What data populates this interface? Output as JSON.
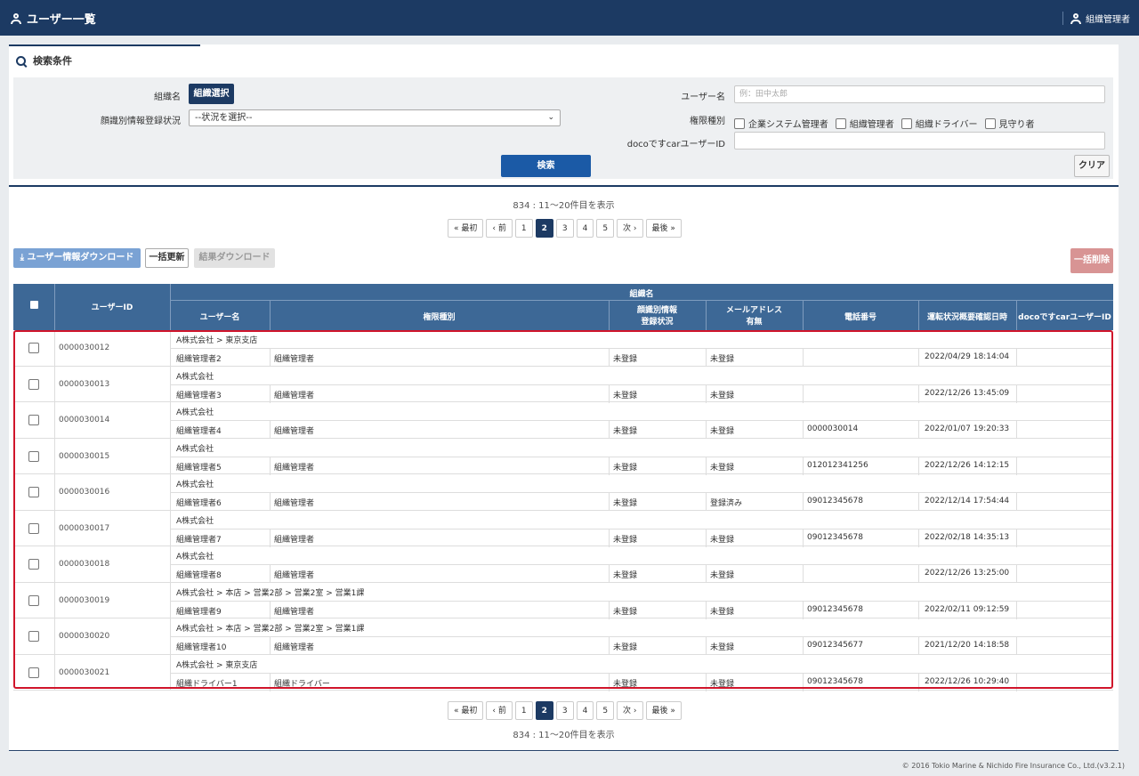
{
  "header": {
    "title": "ユーザー一覧",
    "user_role": "組織管理者"
  },
  "search": {
    "title": "検索条件",
    "org_label": "組織名",
    "org_button": "組織選択",
    "status_label": "顔識別情報登録状況",
    "status_select": "--状況を選択--",
    "username_label": "ユーザー名",
    "username_placeholder": "例：田中太郎",
    "role_label": "権限種別",
    "roles": [
      "企業システム管理者",
      "組織管理者",
      "組織ドライバー",
      "見守り者"
    ],
    "docoid_label": "docoですcarユーザーID",
    "search_button": "検索",
    "clear_button": "クリア"
  },
  "result_count": "834 : 11〜20件目を表示",
  "pager": {
    "first": "« 最初",
    "prev": "‹ 前",
    "pages": [
      "1",
      "2",
      "3",
      "4",
      "5"
    ],
    "current": "2",
    "next": "次 ›",
    "last": "最後 »"
  },
  "actions": {
    "download": "⤓ ユーザー情報ダウンロード",
    "bulk_update": "一括更新",
    "result_download": "結果ダウンロード",
    "bulk_delete": "一括削除"
  },
  "table": {
    "headers": {
      "user_id": "ユーザーID",
      "org": "組織名",
      "username": "ユーザー名",
      "role": "権限種別",
      "face_status_1": "顔識別情報",
      "face_status_2": "登録状況",
      "mail_1": "メールアドレス",
      "mail_2": "有無",
      "phone": "電話番号",
      "driving": "運転状況概要確認日時",
      "docoid": "docoですcarユーザーID"
    },
    "rows": [
      {
        "id": "0000030012",
        "org": "A株式会社 > 東京支店",
        "name": "組織管理者2",
        "role": "組織管理者",
        "face": "未登録",
        "mail": "未登録",
        "phone": "",
        "date": "2022/04/29 18:14:04",
        "doco": ""
      },
      {
        "id": "0000030013",
        "org": "A株式会社",
        "name": "組織管理者3",
        "role": "組織管理者",
        "face": "未登録",
        "mail": "未登録",
        "phone": "",
        "date": "2022/12/26 13:45:09",
        "doco": ""
      },
      {
        "id": "0000030014",
        "org": "A株式会社",
        "name": "組織管理者4",
        "role": "組織管理者",
        "face": "未登録",
        "mail": "未登録",
        "phone": "0000030014",
        "date": "2022/01/07 19:20:33",
        "doco": ""
      },
      {
        "id": "0000030015",
        "org": "A株式会社",
        "name": "組織管理者5",
        "role": "組織管理者",
        "face": "未登録",
        "mail": "未登録",
        "phone": "012012341256",
        "date": "2022/12/26 14:12:15",
        "doco": ""
      },
      {
        "id": "0000030016",
        "org": "A株式会社",
        "name": "組織管理者6",
        "role": "組織管理者",
        "face": "未登録",
        "mail": "登録済み",
        "phone": "09012345678",
        "date": "2022/12/14 17:54:44",
        "doco": ""
      },
      {
        "id": "0000030017",
        "org": "A株式会社",
        "name": "組織管理者7",
        "role": "組織管理者",
        "face": "未登録",
        "mail": "未登録",
        "phone": "09012345678",
        "date": "2022/02/18 14:35:13",
        "doco": ""
      },
      {
        "id": "0000030018",
        "org": "A株式会社",
        "name": "組織管理者8",
        "role": "組織管理者",
        "face": "未登録",
        "mail": "未登録",
        "phone": "",
        "date": "2022/12/26 13:25:00",
        "doco": ""
      },
      {
        "id": "0000030019",
        "org": "A株式会社 > 本店 > 営業2部 > 営業2室 > 営業1課",
        "name": "組織管理者9",
        "role": "組織管理者",
        "face": "未登録",
        "mail": "未登録",
        "phone": "09012345678",
        "date": "2022/02/11 09:12:59",
        "doco": ""
      },
      {
        "id": "0000030020",
        "org": "A株式会社 > 本店 > 営業2部 > 営業2室 > 営業1課",
        "name": "組織管理者10",
        "role": "組織管理者",
        "face": "未登録",
        "mail": "未登録",
        "phone": "09012345677",
        "date": "2021/12/20 14:18:58",
        "doco": ""
      },
      {
        "id": "0000030021",
        "org": "A株式会社 > 東京支店",
        "name": "組織ドライバー1",
        "role": "組織ドライバー",
        "face": "未登録",
        "mail": "未登録",
        "phone": "09012345678",
        "date": "2022/12/26 10:29:40",
        "doco": ""
      }
    ]
  },
  "footer": {
    "copyright": "© 2016 Tokio Marine & Nichido Fire Insurance Co., Ltd.(v3.2.1)"
  }
}
